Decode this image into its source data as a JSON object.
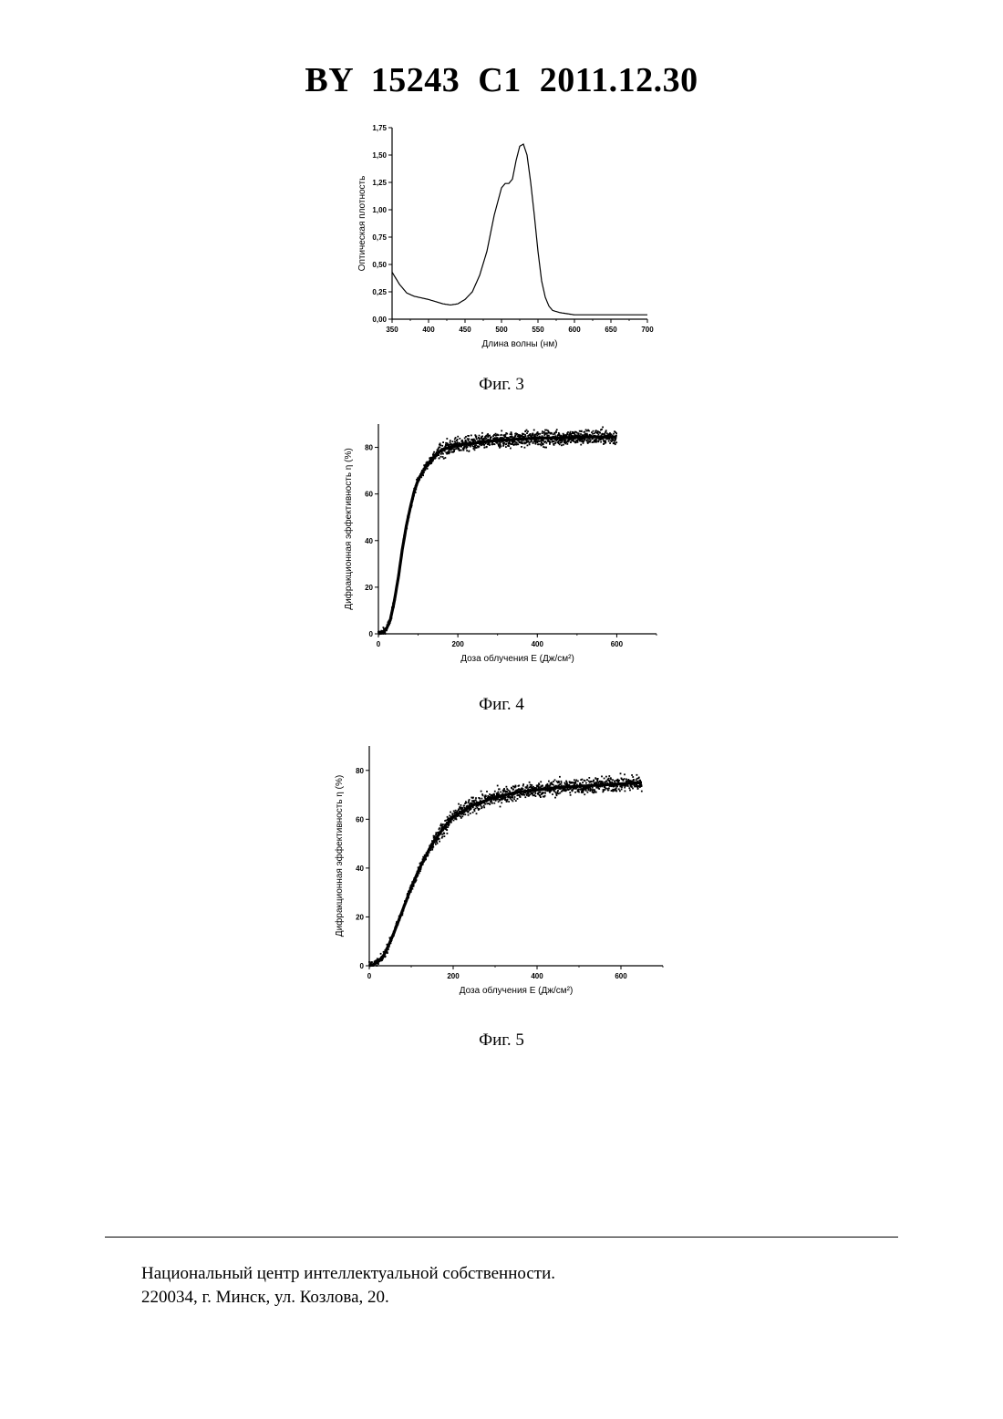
{
  "header": {
    "title": "BY  15243  C1  2011.12.30"
  },
  "figures": [
    {
      "caption": "Фиг. 3"
    },
    {
      "caption": "Фиг. 4"
    },
    {
      "caption": "Фиг. 5"
    }
  ],
  "footer": {
    "line1": "Национальный центр интеллектуальной собственности.",
    "line2": "220034, г. Минск, ул. Козлова, 20."
  },
  "chart_data": [
    {
      "type": "line",
      "xlabel": "Длина волны (нм)",
      "ylabel": "Оптическая плотность",
      "xlim": [
        350,
        700
      ],
      "ylim": [
        0,
        1.75
      ],
      "xticks": [
        "350",
        "400",
        "450",
        "500",
        "550",
        "600",
        "650",
        "700"
      ],
      "yticks": [
        "0,00",
        "0,25",
        "0,50",
        "0,75",
        "1,00",
        "1,25",
        "1,50",
        "1,75"
      ],
      "series": [
        {
          "x": [
            350,
            360,
            370,
            380,
            400,
            420,
            430,
            440,
            450,
            460,
            470,
            480,
            490,
            500,
            505,
            510,
            515,
            520,
            525,
            530,
            535,
            540,
            545,
            550,
            555,
            560,
            565,
            570,
            580,
            590,
            600,
            625,
            650,
            700
          ],
          "y": [
            0.43,
            0.32,
            0.24,
            0.21,
            0.18,
            0.14,
            0.13,
            0.14,
            0.18,
            0.25,
            0.4,
            0.62,
            0.95,
            1.2,
            1.24,
            1.24,
            1.28,
            1.45,
            1.58,
            1.6,
            1.5,
            1.25,
            0.95,
            0.62,
            0.35,
            0.2,
            0.12,
            0.08,
            0.06,
            0.05,
            0.04,
            0.04,
            0.04,
            0.04
          ]
        }
      ]
    },
    {
      "type": "scatter",
      "xlabel": "Доза облучения E (Дж/см²)",
      "ylabel": "Дифракционная эффективность η (%)",
      "xlim": [
        0,
        700
      ],
      "ylim": [
        0,
        90
      ],
      "xticks": [
        "0",
        "200",
        "400",
        "600"
      ],
      "yticks": [
        "0",
        "20",
        "40",
        "60",
        "80"
      ],
      "series": [
        {
          "x": [
            0,
            10,
            20,
            30,
            40,
            50,
            60,
            70,
            80,
            90,
            100,
            120,
            140,
            160,
            180,
            200,
            250,
            300,
            350,
            400,
            450,
            500,
            550,
            600
          ],
          "y": [
            0,
            0.5,
            2,
            6,
            14,
            24,
            36,
            46,
            54,
            61,
            66,
            72,
            76,
            79,
            80,
            81,
            82,
            83,
            83.5,
            84,
            84,
            84.3,
            84.5,
            84.5
          ]
        }
      ]
    },
    {
      "type": "scatter",
      "xlabel": "Доза облучения E (Дж/см²)",
      "ylabel": "Дифракционная эффективность η (%)",
      "xlim": [
        0,
        700
      ],
      "ylim": [
        0,
        90
      ],
      "xticks": [
        "0",
        "200",
        "400",
        "600"
      ],
      "yticks": [
        "0",
        "20",
        "40",
        "60",
        "80"
      ],
      "series": [
        {
          "x": [
            0,
            10,
            20,
            30,
            40,
            50,
            60,
            80,
            100,
            120,
            150,
            180,
            200,
            250,
            300,
            350,
            400,
            450,
            500,
            550,
            600,
            650
          ],
          "y": [
            0,
            0.5,
            1.5,
            3,
            6,
            10,
            14,
            23,
            32,
            40,
            50,
            57,
            61,
            66,
            69,
            71,
            72,
            73,
            73.5,
            74,
            74.5,
            75
          ]
        }
      ]
    }
  ]
}
